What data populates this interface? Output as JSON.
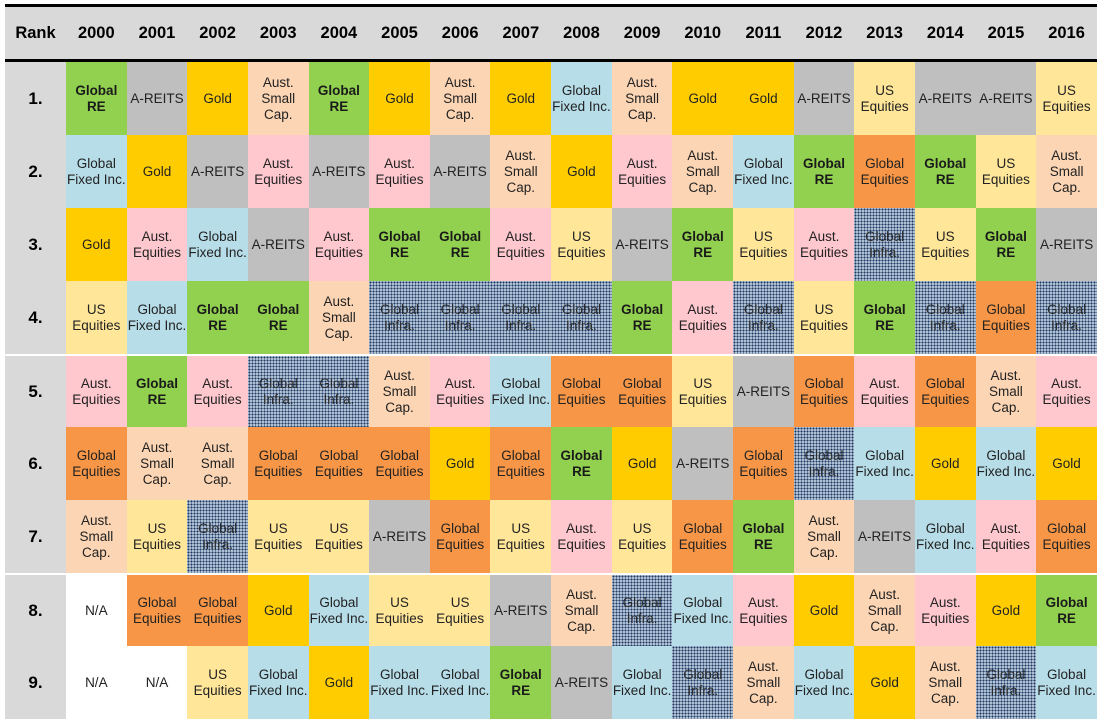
{
  "header": {
    "rank_label": "Rank",
    "years": [
      "2000",
      "2001",
      "2002",
      "2003",
      "2004",
      "2005",
      "2006",
      "2007",
      "2008",
      "2009",
      "2010",
      "2011",
      "2012",
      "2013",
      "2014",
      "2015",
      "2016"
    ]
  },
  "legend_classes": {
    "Global\nRE": "globalre",
    "A-REITS": "areits",
    "Gold": "gold",
    "Aust.\nSmall\nCap.": "smallcap",
    "Global\nFixed Inc.": "fixedinc",
    "Aust.\nEquities": "ausequities",
    "US\nEquities": "usequities",
    "Global\nEquities": "globalequities",
    "Global\nInfra.": "infra",
    "N/A": "na"
  },
  "colors": {
    "header_bg": "#d9d9d9",
    "global_re": "#92d050",
    "a_reits": "#bfbfbf",
    "gold": "#ffcc00",
    "aust_small_cap": "#fcd5b4",
    "global_fixed_inc": "#b7dde8",
    "aust_equities": "#ffc7ce",
    "us_equities": "#ffe699",
    "global_equities": "#f79646",
    "global_infra": "#b4c6d9 dotted #1f3864"
  },
  "rows": [
    {
      "rank": "1.",
      "cells": [
        "Global\nRE",
        "A-REITS",
        "Gold",
        "Aust.\nSmall\nCap.",
        "Global\nRE",
        "Gold",
        "Aust.\nSmall\nCap.",
        "Gold",
        "Global\nFixed Inc.",
        "Aust.\nSmall\nCap.",
        "Gold",
        "Gold",
        "A-REITS",
        "US\nEquities",
        "A-REITS",
        "A-REITS",
        "US\nEquities"
      ]
    },
    {
      "rank": "2.",
      "cells": [
        "Global\nFixed Inc.",
        "Gold",
        "A-REITS",
        "Aust.\nEquities",
        "A-REITS",
        "Aust.\nEquities",
        "A-REITS",
        "Aust.\nSmall\nCap.",
        "Gold",
        "Aust.\nEquities",
        "Aust.\nSmall\nCap.",
        "Global\nFixed Inc.",
        "Global\nRE",
        "Global\nEquities",
        "Global\nRE",
        "US\nEquities",
        "Aust.\nSmall\nCap."
      ]
    },
    {
      "rank": "3.",
      "cells": [
        "Gold",
        "Aust.\nEquities",
        "Global\nFixed Inc.",
        "A-REITS",
        "Aust.\nEquities",
        "Global\nRE",
        "Global\nRE",
        "Aust.\nEquities",
        "US\nEquities",
        "A-REITS",
        "Global\nRE",
        "US\nEquities",
        "Aust.\nEquities",
        "Global\nInfra.",
        "US\nEquities",
        "Global\nRE",
        "A-REITS"
      ]
    },
    {
      "rank": "4.",
      "cells": [
        "US\nEquities",
        "Global\nFixed Inc.",
        "Global\nRE",
        "Global\nRE",
        "Aust.\nSmall\nCap.",
        "Global\nInfra.",
        "Global\nInfra.",
        "Global\nInfra.",
        "Global\nInfra.",
        "Global\nRE",
        "Aust.\nEquities",
        "Global\nInfra.",
        "US\nEquities",
        "Global\nRE",
        "Global\nInfra.",
        "Global\nEquities",
        "Global\nInfra."
      ]
    },
    {
      "rank": "5.",
      "cells": [
        "Aust.\nEquities",
        "Global\nRE",
        "Aust.\nEquities",
        "Global\nInfra.",
        "Global\nInfra.",
        "Aust.\nSmall\nCap.",
        "Aust.\nEquities",
        "Global\nFixed Inc.",
        "Global\nEquities",
        "Global\nEquities",
        "US\nEquities",
        "A-REITS",
        "Global\nEquities",
        "Aust.\nEquities",
        "Global\nEquities",
        "Aust.\nSmall\nCap.",
        "Aust.\nEquities"
      ]
    },
    {
      "rank": "6.",
      "cells": [
        "Global\nEquities",
        "Aust.\nSmall\nCap.",
        "Aust.\nSmall\nCap.",
        "Global\nEquities",
        "Global\nEquities",
        "Global\nEquities",
        "Gold",
        "Global\nEquities",
        "Global\nRE",
        "Gold",
        "A-REITS",
        "Global\nEquities",
        "Global\nInfra.",
        "Global\nFixed Inc.",
        "Gold",
        "Global\nFixed Inc.",
        "Gold"
      ]
    },
    {
      "rank": "7.",
      "cells": [
        "Aust.\nSmall\nCap.",
        "US\nEquities",
        "Global\nInfra.",
        "US\nEquities",
        "US\nEquities",
        "A-REITS",
        "Global\nEquities",
        "US\nEquities",
        "Aust.\nEquities",
        "US\nEquities",
        "Global\nEquities",
        "Global\nRE",
        "Aust.\nSmall\nCap.",
        "A-REITS",
        "Global\nFixed Inc.",
        "Aust.\nEquities",
        "Global\nEquities"
      ]
    },
    {
      "rank": "8.",
      "cells": [
        "N/A",
        "Global\nEquities",
        "Global\nEquities",
        "Gold",
        "Global\nFixed Inc.",
        "US\nEquities",
        "US\nEquities",
        "A-REITS",
        "Aust.\nSmall\nCap.",
        "Global\nInfra.",
        "Global\nFixed Inc.",
        "Aust.\nEquities",
        "Gold",
        "Aust.\nSmall\nCap.",
        "Aust.\nEquities",
        "Gold",
        "Global\nRE"
      ]
    },
    {
      "rank": "9.",
      "cells": [
        "N/A",
        "N/A",
        "US\nEquities",
        "Global\nFixed Inc.",
        "Gold",
        "Global\nFixed Inc.",
        "Global\nFixed Inc.",
        "Global\nRE",
        "A-REITS",
        "Global\nFixed Inc.",
        "Global\nInfra.",
        "Aust.\nSmall\nCap.",
        "Global\nFixed Inc.",
        "Gold",
        "Aust.\nSmall\nCap.",
        "Global\nInfra.",
        "Global\nFixed Inc."
      ]
    }
  ],
  "chart_data": {
    "type": "table",
    "title": "",
    "columns": [
      "Rank",
      "2000",
      "2001",
      "2002",
      "2003",
      "2004",
      "2005",
      "2006",
      "2007",
      "2008",
      "2009",
      "2010",
      "2011",
      "2012",
      "2013",
      "2014",
      "2015",
      "2016"
    ],
    "rows": [
      [
        "1.",
        "Global RE",
        "A-REITS",
        "Gold",
        "Aust. Small Cap.",
        "Global RE",
        "Gold",
        "Aust. Small Cap.",
        "Gold",
        "Global Fixed Inc.",
        "Aust. Small Cap.",
        "Gold",
        "Gold",
        "A-REITS",
        "US Equities",
        "A-REITS",
        "A-REITS",
        "US Equities"
      ],
      [
        "2.",
        "Global Fixed Inc.",
        "Gold",
        "A-REITS",
        "Aust. Equities",
        "A-REITS",
        "Aust. Equities",
        "A-REITS",
        "Aust. Small Cap.",
        "Gold",
        "Aust. Equities",
        "Aust. Small Cap.",
        "Global Fixed Inc.",
        "Global RE",
        "Global Equities",
        "Global RE",
        "US Equities",
        "Aust. Small Cap."
      ],
      [
        "3.",
        "Gold",
        "Aust. Equities",
        "Global Fixed Inc.",
        "A-REITS",
        "Aust. Equities",
        "Global RE",
        "Global RE",
        "Aust. Equities",
        "US Equities",
        "A-REITS",
        "Global RE",
        "US Equities",
        "Aust. Equities",
        "Global Infra.",
        "US Equities",
        "Global RE",
        "A-REITS"
      ],
      [
        "4.",
        "US Equities",
        "Global Fixed Inc.",
        "Global RE",
        "Global RE",
        "Aust. Small Cap.",
        "Global Infra.",
        "Global Infra.",
        "Global Infra.",
        "Global Infra.",
        "Global RE",
        "Aust. Equities",
        "Global Infra.",
        "US Equities",
        "Global RE",
        "Global Infra.",
        "Global Equities",
        "Global Infra."
      ],
      [
        "5.",
        "Aust. Equities",
        "Global RE",
        "Aust. Equities",
        "Global Infra.",
        "Global Infra.",
        "Aust. Small Cap.",
        "Aust. Equities",
        "Global Fixed Inc.",
        "Global Equities",
        "Global Equities",
        "US Equities",
        "A-REITS",
        "Global Equities",
        "Aust. Equities",
        "Global Equities",
        "Aust. Small Cap.",
        "Aust. Equities"
      ],
      [
        "6.",
        "Global Equities",
        "Aust. Small Cap.",
        "Aust. Small Cap.",
        "Global Equities",
        "Global Equities",
        "Global Equities",
        "Gold",
        "Global Equities",
        "Global RE",
        "Gold",
        "A-REITS",
        "Global Equities",
        "Global Infra.",
        "Global Fixed Inc.",
        "Gold",
        "Global Fixed Inc.",
        "Gold"
      ],
      [
        "7.",
        "Aust. Small Cap.",
        "US Equities",
        "Global Infra.",
        "US Equities",
        "US Equities",
        "A-REITS",
        "Global Equities",
        "US Equities",
        "Aust. Equities",
        "US Equities",
        "Global Equities",
        "Global RE",
        "Aust. Small Cap.",
        "A-REITS",
        "Global Fixed Inc.",
        "Aust. Equities",
        "Global Equities"
      ],
      [
        "8.",
        "N/A",
        "Global Equities",
        "Global Equities",
        "Gold",
        "Global Fixed Inc.",
        "US Equities",
        "US Equities",
        "A-REITS",
        "Aust. Small Cap.",
        "Global Infra.",
        "Global Fixed Inc.",
        "Aust. Equities",
        "Gold",
        "Aust. Small Cap.",
        "Aust. Equities",
        "Gold",
        "Global RE"
      ],
      [
        "9.",
        "N/A",
        "N/A",
        "US Equities",
        "Global Fixed Inc.",
        "Gold",
        "Global Fixed Inc.",
        "Global Fixed Inc.",
        "Global RE",
        "A-REITS",
        "Global Fixed Inc.",
        "Global Infra.",
        "Aust. Small Cap.",
        "Global Fixed Inc.",
        "Gold",
        "Aust. Small Cap.",
        "Global Infra.",
        "Global Fixed Inc."
      ]
    ],
    "legend": [
      "Global RE",
      "A-REITS",
      "Gold",
      "Aust. Small Cap.",
      "Global Fixed Inc.",
      "Aust. Equities",
      "US Equities",
      "Global Equities",
      "Global Infra."
    ]
  }
}
